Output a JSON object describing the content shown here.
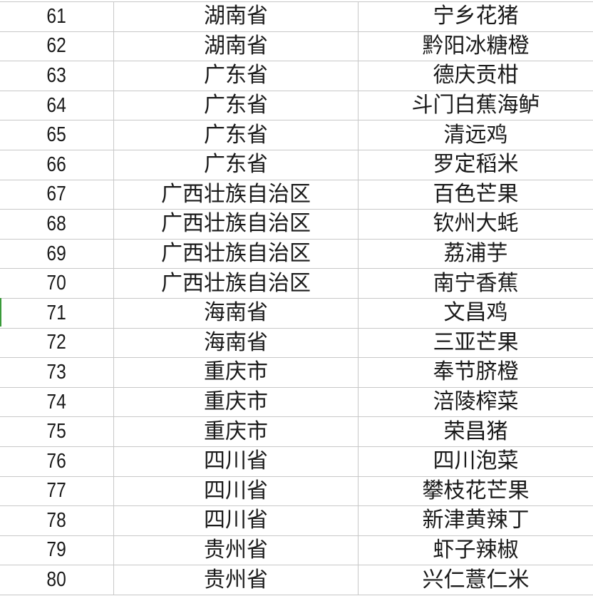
{
  "rows": [
    {
      "no": "61",
      "province": "湖南省",
      "product": "宁乡花猪"
    },
    {
      "no": "62",
      "province": "湖南省",
      "product": "黔阳冰糖橙"
    },
    {
      "no": "63",
      "province": "广东省",
      "product": "德庆贡柑"
    },
    {
      "no": "64",
      "province": "广东省",
      "product": "斗门白蕉海鲈"
    },
    {
      "no": "65",
      "province": "广东省",
      "product": "清远鸡"
    },
    {
      "no": "66",
      "province": "广东省",
      "product": "罗定稻米"
    },
    {
      "no": "67",
      "province": "广西壮族自治区",
      "product": "百色芒果"
    },
    {
      "no": "68",
      "province": "广西壮族自治区",
      "product": "钦州大蚝"
    },
    {
      "no": "69",
      "province": "广西壮族自治区",
      "product": "荔浦芋"
    },
    {
      "no": "70",
      "province": "广西壮族自治区",
      "product": "南宁香蕉"
    },
    {
      "no": "71",
      "province": "海南省",
      "product": "文昌鸡"
    },
    {
      "no": "72",
      "province": "海南省",
      "product": "三亚芒果"
    },
    {
      "no": "73",
      "province": "重庆市",
      "product": "奉节脐橙"
    },
    {
      "no": "74",
      "province": "重庆市",
      "product": "涪陵榨菜"
    },
    {
      "no": "75",
      "province": "重庆市",
      "product": "荣昌猪"
    },
    {
      "no": "76",
      "province": "四川省",
      "product": "四川泡菜"
    },
    {
      "no": "77",
      "province": "四川省",
      "product": "攀枝花芒果"
    },
    {
      "no": "78",
      "province": "四川省",
      "product": "新津黄辣丁"
    },
    {
      "no": "79",
      "province": "贵州省",
      "product": "虾子辣椒"
    },
    {
      "no": "80",
      "province": "贵州省",
      "product": "兴仁薏仁米"
    }
  ]
}
